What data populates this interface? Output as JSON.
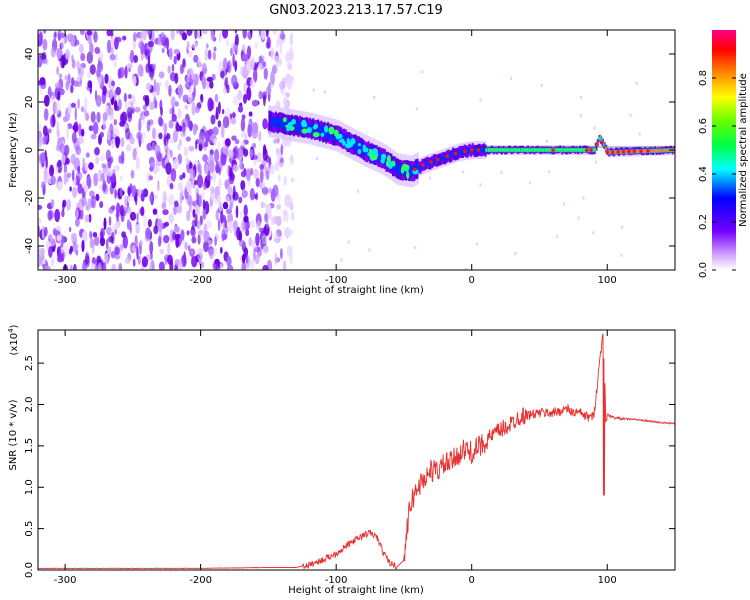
{
  "title": "GN03.2023.213.17.57.C19",
  "chart_data": [
    {
      "type": "heatmap",
      "xlabel": "Height of straight line (km)",
      "ylabel": "Frequency (Hz)",
      "xlim": [
        -320,
        150
      ],
      "ylim": [
        -50,
        50
      ],
      "x_ticks": [
        -300,
        -200,
        -100,
        0,
        100
      ],
      "y_ticks": [
        -40,
        -20,
        0,
        20,
        40
      ],
      "colorbar": {
        "label": "Normalized spectral amplitude",
        "range": [
          0.0,
          1.0
        ],
        "ticks": [
          0.0,
          0.2,
          0.4,
          0.6,
          0.8
        ],
        "colors": [
          "#ffffff",
          "#7700ff",
          "#0000ff",
          "#00ffff",
          "#00ff00",
          "#ffff00",
          "#ff0000",
          "#ff0088"
        ]
      },
      "noise_region_x": [
        -320,
        -135
      ],
      "ridge": {
        "x": [
          -150,
          -120,
          -100,
          -80,
          -65,
          -55,
          -45,
          -35,
          -20,
          -10,
          0,
          10,
          30,
          60,
          90,
          94,
          100,
          150
        ],
        "y": [
          12,
          9,
          6,
          0,
          -4,
          -8,
          -9,
          -6,
          -3,
          -1,
          0,
          0,
          0,
          0,
          0,
          5,
          -1,
          0
        ]
      }
    },
    {
      "type": "line",
      "xlabel": "Height of straight line (km)",
      "ylabel": "SNR (10 * v/v)",
      "y_multiplier": "(x10",
      "y_multiplier_exp": "4",
      "y_multiplier_close": ")",
      "xlim": [
        -320,
        150
      ],
      "ylim": [
        0.0,
        2.9
      ],
      "x_ticks": [
        -300,
        -200,
        -100,
        0,
        100
      ],
      "y_ticks": [
        0.0,
        0.5,
        1.0,
        1.5,
        2.0,
        2.5
      ],
      "line_color": "#e83030",
      "series": [
        {
          "x": [
            -320,
            -200,
            -150,
            -130,
            -120,
            -110,
            -100,
            -90,
            -80,
            -75,
            -70,
            -65,
            -60,
            -55,
            -50,
            -47,
            -45,
            -40,
            -35,
            -30,
            -25,
            -20,
            -15,
            -10,
            -5,
            0,
            5,
            10,
            15,
            20,
            25,
            30,
            35,
            40,
            45,
            50,
            55,
            60,
            65,
            70,
            75,
            80,
            85,
            90,
            95,
            97,
            99,
            100,
            105,
            110,
            120,
            130,
            140,
            150
          ],
          "y": [
            0.02,
            0.02,
            0.03,
            0.03,
            0.06,
            0.12,
            0.2,
            0.32,
            0.42,
            0.45,
            0.4,
            0.2,
            0.08,
            0.04,
            0.12,
            0.6,
            0.8,
            1.0,
            1.1,
            1.2,
            1.2,
            1.28,
            1.3,
            1.4,
            1.45,
            1.42,
            1.48,
            1.55,
            1.62,
            1.68,
            1.72,
            1.78,
            1.85,
            1.87,
            1.88,
            1.9,
            1.9,
            1.9,
            1.92,
            1.95,
            1.9,
            1.9,
            1.85,
            1.85,
            2.6,
            2.9,
            1.8,
            1.88,
            1.84,
            1.83,
            1.82,
            1.8,
            1.78,
            1.77
          ]
        }
      ]
    }
  ]
}
